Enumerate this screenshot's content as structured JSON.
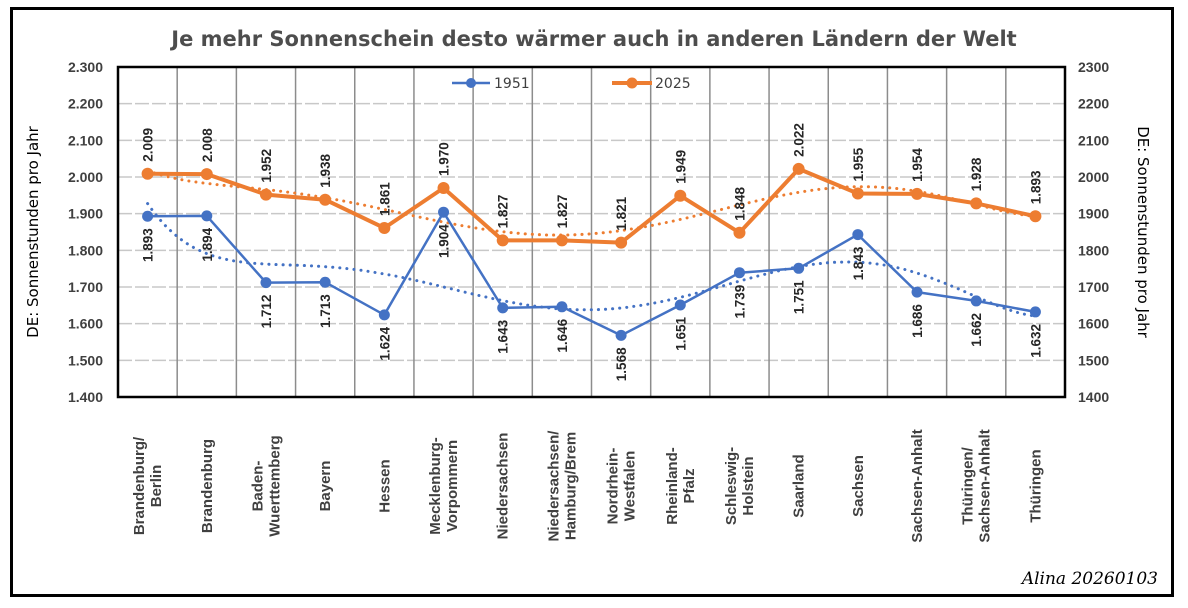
{
  "chart_data": {
    "type": "line",
    "title": "Je mehr Sonnenschein desto wärmer auch in anderen Ländern der Welt",
    "xlabel": "",
    "ylabel": "DE: Sonnenstunden pro Jahr",
    "ylabel_right": "DE: Sonnenstunden pro Jahr",
    "ylim": [
      1400,
      2300
    ],
    "yticks_left": [
      "1.400",
      "1.500",
      "1.600",
      "1.700",
      "1.800",
      "1.900",
      "2.000",
      "2.100",
      "2.200",
      "2.300"
    ],
    "yticks_right": [
      "1400",
      "1500",
      "1600",
      "1700",
      "1800",
      "1900",
      "2000",
      "2100",
      "2200",
      "2300"
    ],
    "grid": true,
    "legend_position": "top",
    "categories": [
      "Brandenburg/\nBerlin",
      "Brandenburg",
      "Baden-\nWuerttemberg",
      "Bayern",
      "Hessen",
      "Mecklenburg-\nVorpommern",
      "Niedersachsen",
      "Niedersachsen/\nHamburg/Brem",
      "Nordrhein-\nWestfalen",
      "Rheinland-\nPfalz",
      "Schleswig-\nHolstein",
      "Saarland",
      "Sachsen",
      "Sachsen-Anhalt",
      "Thüringen/\nSachsen-Anhalt",
      "Thüringen"
    ],
    "series": [
      {
        "name": "1951",
        "color": "#4472c4",
        "values": [
          1893,
          1894,
          1712,
          1713,
          1624,
          1904,
          1643,
          1646,
          1568,
          1651,
          1739,
          1751,
          1843,
          1686,
          1662,
          1632
        ],
        "labels": [
          "1.893",
          "1.894",
          "1.712",
          "1.713",
          "1.624",
          "1.904",
          "1.643",
          "1.646",
          "1.568",
          "1.651",
          "1.739",
          "1.751",
          "1.843",
          "1.686",
          "1.662",
          "1.632"
        ],
        "trendline": "polynomial-dotted"
      },
      {
        "name": "2025",
        "color": "#ed7d31",
        "values": [
          2009,
          2008,
          1952,
          1938,
          1861,
          1970,
          1827,
          1827,
          1821,
          1949,
          1848,
          2022,
          1955,
          1954,
          1928,
          1893
        ],
        "labels": [
          "2.009",
          "2.008",
          "1.952",
          "1.938",
          "1.861",
          "1.970",
          "1.827",
          "1.827",
          "1.821",
          "1.949",
          "1.848",
          "2.022",
          "1.955",
          "1.954",
          "1.928",
          "1.893"
        ],
        "trendline": "polynomial-dotted"
      }
    ],
    "annotations": [
      "Alina 20260103"
    ]
  }
}
